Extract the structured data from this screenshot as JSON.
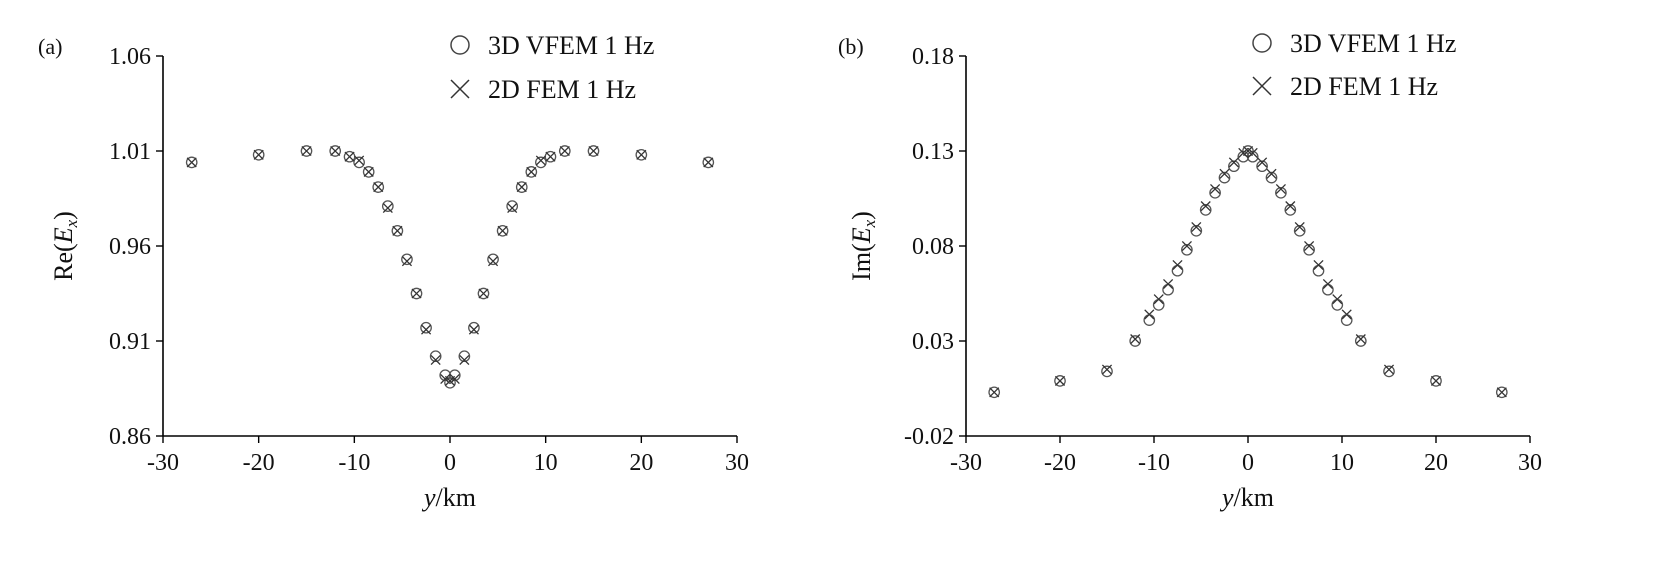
{
  "chart_data": [
    {
      "type": "scatter",
      "panel_label": "(a)",
      "xlabel_var": "y",
      "xlabel_unit": "/km",
      "ylabel_prefix": "Re(",
      "ylabel_var": "E",
      "ylabel_sub": "x",
      "ylabel_suffix": ")",
      "xlim": [
        -30,
        30
      ],
      "ylim": [
        0.86,
        1.06
      ],
      "xticks": [
        "-30",
        "-20",
        "-10",
        "0",
        "10",
        "20",
        "30"
      ],
      "yticks": [
        "0.86",
        "0.91",
        "0.96",
        "1.01",
        "1.06"
      ],
      "grid": false,
      "legend_position": "top-right",
      "series": [
        {
          "name": "3D VFEM 1 Hz",
          "marker": "circle",
          "x": [
            -27,
            -20,
            -15,
            -12,
            -10.5,
            -9.5,
            -8.5,
            -7.5,
            -6.5,
            -5.5,
            -4.5,
            -3.5,
            -2.5,
            -1.5,
            -0.5,
            0,
            0.5,
            1.5,
            2.5,
            3.5,
            4.5,
            5.5,
            6.5,
            7.5,
            8.5,
            9.5,
            10.5,
            12,
            15,
            20,
            27
          ],
          "y": [
            1.004,
            1.008,
            1.01,
            1.01,
            1.007,
            1.004,
            0.999,
            0.991,
            0.981,
            0.968,
            0.953,
            0.935,
            0.917,
            0.902,
            0.892,
            0.888,
            0.892,
            0.902,
            0.917,
            0.935,
            0.953,
            0.968,
            0.981,
            0.991,
            0.999,
            1.004,
            1.007,
            1.01,
            1.01,
            1.008,
            1.004
          ]
        },
        {
          "name": "2D FEM 1 Hz",
          "marker": "cross",
          "x": [
            -27,
            -20,
            -15,
            -12,
            -10.5,
            -9.5,
            -8.5,
            -7.5,
            -6.5,
            -5.5,
            -4.5,
            -3.5,
            -2.5,
            -1.5,
            -0.5,
            0,
            0.5,
            1.5,
            2.5,
            3.5,
            4.5,
            5.5,
            6.5,
            7.5,
            8.5,
            9.5,
            10.5,
            12,
            15,
            20,
            27
          ],
          "y": [
            1.004,
            1.008,
            1.01,
            1.01,
            1.007,
            1.005,
            0.999,
            0.991,
            0.98,
            0.968,
            0.952,
            0.935,
            0.916,
            0.9,
            0.89,
            0.889,
            0.89,
            0.9,
            0.916,
            0.935,
            0.952,
            0.968,
            0.98,
            0.991,
            0.999,
            1.005,
            1.007,
            1.01,
            1.01,
            1.008,
            1.004
          ]
        }
      ]
    },
    {
      "type": "scatter",
      "panel_label": "(b)",
      "xlabel_var": "y",
      "xlabel_unit": "/km",
      "ylabel_prefix": "Im(",
      "ylabel_var": "E",
      "ylabel_sub": "x",
      "ylabel_suffix": ")",
      "xlim": [
        -30,
        30
      ],
      "ylim": [
        -0.02,
        0.18
      ],
      "xticks": [
        "-30",
        "-20",
        "-10",
        "0",
        "10",
        "20",
        "30"
      ],
      "yticks": [
        "-0.02",
        "0.03",
        "0.08",
        "0.13",
        "0.18"
      ],
      "grid": false,
      "legend_position": "top-right",
      "series": [
        {
          "name": "3D VFEM 1 Hz",
          "marker": "circle",
          "x": [
            -27,
            -20,
            -15,
            -12,
            -10.5,
            -9.5,
            -8.5,
            -7.5,
            -6.5,
            -5.5,
            -4.5,
            -3.5,
            -2.5,
            -1.5,
            -0.5,
            0,
            0.5,
            1.5,
            2.5,
            3.5,
            4.5,
            5.5,
            6.5,
            7.5,
            8.5,
            9.5,
            10.5,
            12,
            15,
            20,
            27
          ],
          "y": [
            0.003,
            0.009,
            0.014,
            0.03,
            0.041,
            0.049,
            0.057,
            0.067,
            0.078,
            0.088,
            0.099,
            0.108,
            0.116,
            0.122,
            0.127,
            0.13,
            0.127,
            0.122,
            0.116,
            0.108,
            0.099,
            0.088,
            0.078,
            0.067,
            0.057,
            0.049,
            0.041,
            0.03,
            0.014,
            0.009,
            0.003
          ]
        },
        {
          "name": "2D FEM 1 Hz",
          "marker": "cross",
          "x": [
            -27,
            -20,
            -15,
            -12,
            -10.5,
            -9.5,
            -8.5,
            -7.5,
            -6.5,
            -5.5,
            -4.5,
            -3.5,
            -2.5,
            -1.5,
            -0.5,
            0,
            0.5,
            1.5,
            2.5,
            3.5,
            4.5,
            5.5,
            6.5,
            7.5,
            8.5,
            9.5,
            10.5,
            12,
            15,
            20,
            27
          ],
          "y": [
            0.003,
            0.009,
            0.015,
            0.031,
            0.044,
            0.052,
            0.06,
            0.07,
            0.08,
            0.09,
            0.101,
            0.11,
            0.118,
            0.124,
            0.129,
            0.13,
            0.129,
            0.124,
            0.118,
            0.11,
            0.101,
            0.09,
            0.08,
            0.07,
            0.06,
            0.052,
            0.044,
            0.031,
            0.015,
            0.009,
            0.003
          ]
        }
      ]
    }
  ]
}
